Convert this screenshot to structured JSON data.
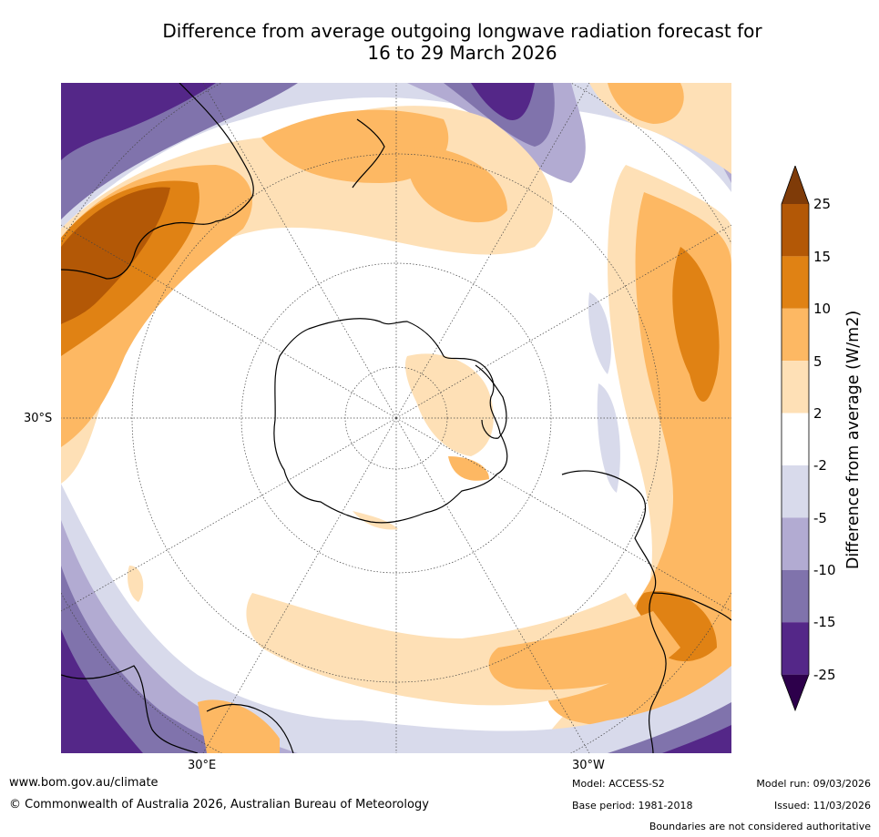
{
  "title": {
    "line1": "Difference from average outgoing longwave radiation forecast for",
    "line2": "16 to 29 March 2026"
  },
  "map": {
    "lat_labels": [
      "30°S"
    ],
    "lon_labels": [
      "30°E",
      "30°W"
    ]
  },
  "colorbar": {
    "label": "Difference from average (W/m2)",
    "ticks": [
      "25",
      "15",
      "10",
      "5",
      "2",
      "-2",
      "-5",
      "-10",
      "-15",
      "-25"
    ],
    "colors": {
      "over": "#7f3b08",
      "b15_25": "#b35806",
      "b10_15": "#e08214",
      "b5_10": "#fdb863",
      "b2_5": "#fee0b6",
      "neutral": "#ffffff",
      "m2_5": "#d8daeb",
      "m5_10": "#b2abd2",
      "m10_15": "#8073ac",
      "m15_25": "#542788",
      "under": "#2d004b"
    }
  },
  "footer": {
    "website": "www.bom.gov.au/climate",
    "copyright": "© Commonwealth of Australia 2026, Australian Bureau of Meteorology",
    "model": "Model: ACCESS-S2",
    "base_period": "Base period: 1981-2018",
    "model_run": "Model run: 09/03/2026",
    "issued": "Issued: 11/03/2026",
    "disclaimer": "Boundaries are not considered authoritative"
  }
}
